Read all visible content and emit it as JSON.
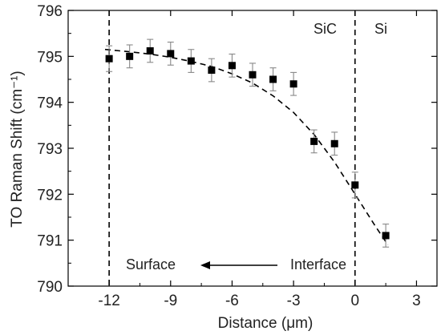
{
  "chart_data": {
    "type": "scatter",
    "title": "",
    "xlabel": "Distance (μm)",
    "ylabel": "TO Raman Shift (cm⁻¹)",
    "xlim": [
      -14,
      4
    ],
    "ylim": [
      790,
      796
    ],
    "xticks": [
      -12,
      -9,
      -6,
      -3,
      0,
      3
    ],
    "yticks": [
      790,
      791,
      792,
      793,
      794,
      795,
      796
    ],
    "grid": false,
    "series": [
      {
        "name": "",
        "marker": "square",
        "color": "#000000",
        "points": [
          {
            "x": -12,
            "y": 794.95,
            "err": 0.28
          },
          {
            "x": -11,
            "y": 795.0,
            "err": 0.25
          },
          {
            "x": -10,
            "y": 795.12,
            "err": 0.25
          },
          {
            "x": -9,
            "y": 795.06,
            "err": 0.25
          },
          {
            "x": -8,
            "y": 794.9,
            "err": 0.25
          },
          {
            "x": -7,
            "y": 794.7,
            "err": 0.25
          },
          {
            "x": -6,
            "y": 794.8,
            "err": 0.25
          },
          {
            "x": -5,
            "y": 794.6,
            "err": 0.25
          },
          {
            "x": -4,
            "y": 794.5,
            "err": 0.25
          },
          {
            "x": -3,
            "y": 794.4,
            "err": 0.25
          },
          {
            "x": -2,
            "y": 793.15,
            "err": 0.25
          },
          {
            "x": -1,
            "y": 793.1,
            "err": 0.25
          },
          {
            "x": 0,
            "y": 792.2,
            "err": 0.28
          },
          {
            "x": 1.5,
            "y": 791.1,
            "err": 0.25
          }
        ]
      }
    ],
    "fit_curve": {
      "style": "dashed",
      "color": "#000000",
      "x": [
        -12.2,
        -11,
        -10,
        -9,
        -8,
        -7,
        -6,
        -5,
        -4,
        -3,
        -2,
        -1,
        0,
        1,
        1.6
      ],
      "y": [
        795.15,
        795.1,
        795.05,
        794.98,
        794.89,
        794.78,
        794.62,
        794.42,
        794.14,
        793.78,
        793.3,
        792.7,
        792.0,
        791.3,
        790.9
      ]
    },
    "vertical_lines": [
      {
        "x": -12,
        "style": "dashed"
      },
      {
        "x": 0,
        "style": "dashed"
      }
    ],
    "annotations": {
      "sic": "SiC",
      "si": "Si",
      "surface": "Surface",
      "interface": "Interface"
    }
  }
}
